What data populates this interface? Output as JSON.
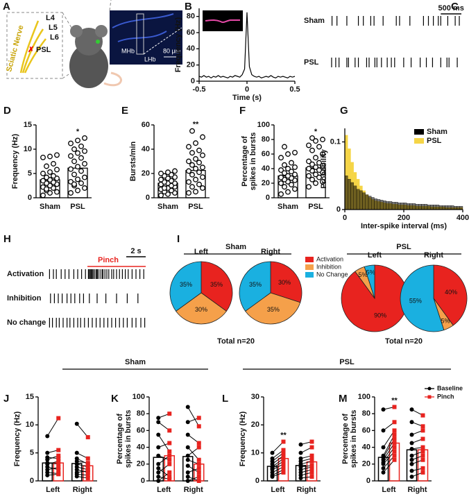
{
  "panel_a": {
    "letter": "A",
    "nerve": "Sciatic Nerve",
    "roots": [
      "L4",
      "L5",
      "L6"
    ],
    "injury": "PSL",
    "regions": [
      "MHb",
      "LHb"
    ],
    "scale": "80 μm"
  },
  "chart_data": [
    {
      "type": "line",
      "panel": "B",
      "ylabel": "Frequency (Hz)",
      "xlabel": "Time (s)",
      "xlim": [
        -0.5,
        0.5
      ],
      "xticks": [
        -0.5,
        0,
        0.5
      ],
      "ylim": [
        0,
        90
      ],
      "yticks": [
        0,
        20,
        40,
        60,
        80
      ],
      "color": "#000000",
      "x": [
        -0.5,
        -0.475,
        -0.45,
        -0.425,
        -0.4,
        -0.375,
        -0.35,
        -0.325,
        -0.3,
        -0.275,
        -0.25,
        -0.225,
        -0.2,
        -0.175,
        -0.15,
        -0.125,
        -0.1,
        -0.075,
        -0.05,
        -0.025,
        0,
        0.025,
        0.05,
        0.075,
        0.1,
        0.125,
        0.15,
        0.175,
        0.2,
        0.225,
        0.25,
        0.275,
        0.3,
        0.325,
        0.35,
        0.375,
        0.4,
        0.425,
        0.45,
        0.475,
        0.5
      ],
      "values": [
        6,
        5,
        7,
        5,
        6,
        4,
        6,
        5,
        7,
        5,
        6,
        5,
        4,
        6,
        5,
        7,
        6,
        5,
        8,
        15,
        85,
        18,
        8,
        6,
        5,
        6,
        4,
        5,
        6,
        5,
        7,
        5,
        4,
        6,
        5,
        6,
        5,
        4,
        6,
        5,
        6
      ]
    },
    {
      "type": "raster",
      "panel": "C",
      "xlim": [
        0,
        3200
      ],
      "scale_bar": {
        "value": 500,
        "label": "500 ms"
      },
      "series": [
        {
          "name": "Sham",
          "values": [
            60,
            180,
            420,
            700,
            820,
            1000,
            1080,
            1300,
            1620,
            1700,
            1950,
            2280,
            2400,
            2520,
            2640,
            2700,
            2870,
            3050,
            3150
          ]
        },
        {
          "name": "PSL",
          "values": [
            50,
            150,
            230,
            420,
            460,
            620,
            700,
            900,
            960,
            1100,
            1150,
            1260,
            1400,
            1500,
            1580,
            1800,
            1980,
            2200,
            2350,
            2500,
            2700,
            2850,
            2900,
            3100
          ]
        }
      ]
    },
    {
      "type": "bar_scatter",
      "panel": "D",
      "ylabel": "Frequency (Hz)",
      "categories": [
        "Sham",
        "PSL"
      ],
      "values": [
        3.7,
        6.1
      ],
      "stars": [
        null,
        "*"
      ],
      "ylim": [
        0,
        15
      ],
      "yticks": [
        0,
        5,
        10,
        15
      ],
      "points": [
        [
          0.5,
          1,
          1.2,
          1.5,
          2,
          2.2,
          2.5,
          2.8,
          3,
          3.2,
          3.5,
          3.7,
          4,
          4.2,
          4.5,
          5,
          5.3,
          5.8,
          6.5,
          7,
          8.3,
          8.5,
          8.8,
          1.8
        ],
        [
          1,
          1.5,
          2,
          2.5,
          3,
          3.3,
          3.8,
          4.2,
          4.8,
          5.5,
          5.9,
          6.4,
          7,
          7.5,
          8.2,
          8.6,
          9.2,
          9.6,
          10,
          10.6,
          11.2,
          11.8,
          12.3,
          2.8
        ]
      ]
    },
    {
      "type": "bar_scatter",
      "panel": "E",
      "ylabel": "Bursts/min",
      "categories": [
        "Sham",
        "PSL"
      ],
      "values": [
        12,
        22.5
      ],
      "stars": [
        null,
        "**"
      ],
      "ylim": [
        0,
        60
      ],
      "yticks": [
        0,
        20,
        40,
        60
      ],
      "points": [
        [
          2,
          3,
          4,
          5,
          6,
          7,
          8,
          9,
          10,
          10,
          11,
          12,
          12,
          13,
          14,
          15,
          16,
          17,
          18,
          19,
          20,
          21,
          22,
          8
        ],
        [
          4,
          5,
          8,
          9,
          11,
          13,
          15,
          17,
          19,
          21,
          22,
          24,
          25,
          27,
          29,
          30,
          32,
          35,
          37,
          39,
          42,
          45,
          50,
          55
        ]
      ]
    },
    {
      "type": "bar_scatter",
      "panel": "F",
      "ylabel": [
        "Percentage of",
        "spikes in bursts"
      ],
      "categories": [
        "Sham",
        "PSL"
      ],
      "values": [
        30,
        41
      ],
      "stars": [
        null,
        "*"
      ],
      "ylim": [
        0,
        100
      ],
      "yticks": [
        0,
        20,
        40,
        60,
        80,
        100
      ],
      "points": [
        [
          5,
          8,
          12,
          15,
          18,
          20,
          22,
          24,
          25,
          27,
          28,
          30,
          32,
          34,
          36,
          38,
          40,
          42,
          45,
          48,
          55,
          60,
          62,
          70
        ],
        [
          15,
          20,
          22,
          25,
          28,
          30,
          32,
          35,
          37,
          38,
          40,
          42,
          44,
          46,
          48,
          50,
          55,
          60,
          65,
          70,
          72,
          78,
          80,
          82
        ]
      ]
    },
    {
      "type": "histogram",
      "panel": "G",
      "ylabel": "Probability",
      "xlabel": "Inter-spike  interval (ms)",
      "xlim": [
        0,
        400
      ],
      "xticks": [
        0,
        200,
        400
      ],
      "ylim": [
        0,
        0.12
      ],
      "yticks": [
        0,
        0.1
      ],
      "legend": "top-right",
      "bins": [
        0,
        10,
        20,
        30,
        40,
        50,
        60,
        70,
        80,
        90,
        100,
        110,
        120,
        130,
        140,
        150,
        160,
        170,
        180,
        190,
        200,
        210,
        220,
        230,
        240,
        250,
        260,
        270,
        280,
        290,
        300,
        310,
        320,
        330,
        340,
        350,
        360,
        370,
        380,
        390,
        400
      ],
      "series": [
        {
          "name": "Sham",
          "color": "#000000",
          "values": [
            0.05,
            0.045,
            0.04,
            0.035,
            0.03,
            0.028,
            0.025,
            0.022,
            0.02,
            0.018,
            0.016,
            0.015,
            0.014,
            0.013,
            0.012,
            0.012,
            0.011,
            0.011,
            0.01,
            0.01,
            0.01,
            0.009,
            0.009,
            0.009,
            0.008,
            0.008,
            0.008,
            0.008,
            0.007,
            0.007,
            0.007,
            0.007,
            0.006,
            0.006,
            0.006,
            0.006,
            0.006,
            0.005,
            0.005,
            0.005
          ]
        },
        {
          "name": "PSL",
          "color": "#f5d547",
          "values": [
            0.11,
            0.09,
            0.07,
            0.055,
            0.045,
            0.035,
            0.028,
            0.022,
            0.018,
            0.015,
            0.013,
            0.012,
            0.011,
            0.01,
            0.009,
            0.009,
            0.008,
            0.008,
            0.007,
            0.007,
            0.007,
            0.006,
            0.006,
            0.006,
            0.005,
            0.005,
            0.005,
            0.005,
            0.005,
            0.004,
            0.004,
            0.004,
            0.004,
            0.004,
            0.003,
            0.003,
            0.003,
            0.003,
            0.003,
            0.003
          ]
        }
      ]
    },
    {
      "type": "raster",
      "panel": "H",
      "xlim": [
        0,
        10
      ],
      "scale_bar": {
        "value": 2,
        "label": "2 s"
      },
      "pinch": {
        "start": 4,
        "end": 10,
        "label": "Pinch",
        "color": "#e8231f"
      },
      "series": [
        {
          "name": "Activation",
          "values": [
            0.1,
            0.5,
            0.8,
            1.3,
            1.7,
            2.1,
            2.6,
            3.0,
            3.4,
            3.8,
            4.1,
            4.2,
            4.3,
            4.4,
            4.5,
            4.6,
            4.75,
            4.9,
            5.0,
            5.1,
            5.3,
            5.5,
            5.6,
            5.8,
            6.0,
            6.2,
            6.5,
            6.7,
            7.0,
            7.3,
            7.6,
            7.9,
            8.2,
            8.6,
            9.0,
            9.4,
            9.8
          ]
        },
        {
          "name": "Inhibition",
          "values": [
            0.2,
            0.6,
            1.0,
            1.4,
            1.9,
            2.3,
            2.7,
            3.2,
            3.6,
            4.2,
            5.0,
            5.9,
            7.0,
            8.1,
            9.2
          ]
        },
        {
          "name": "No change",
          "values": [
            0.1,
            0.4,
            0.8,
            1.1,
            1.5,
            1.9,
            2.2,
            2.6,
            3.0,
            3.3,
            3.7,
            4.1,
            4.5,
            4.9,
            5.3,
            5.7,
            6.1,
            6.5,
            6.9,
            7.3,
            7.7,
            8.1,
            8.6,
            9.0,
            9.5,
            9.9
          ]
        }
      ]
    },
    {
      "type": "pie",
      "panel": "I",
      "categories": [
        "Activation",
        "Inhibition",
        "No Change"
      ],
      "colors": [
        "#e8231f",
        "#f5a04a",
        "#1ab0e0"
      ],
      "groups": [
        {
          "name": "Sham",
          "total": "Total n=20",
          "pies": [
            {
              "name": "Left",
              "values": [
                35,
                30,
                35
              ],
              "value_labels": [
                "35%",
                "30%",
                "35%"
              ]
            },
            {
              "name": "Right",
              "values": [
                30,
                35,
                35
              ],
              "value_labels": [
                "30%",
                "35%",
                "35%"
              ]
            }
          ]
        },
        {
          "name": "PSL",
          "total": "Total n=20",
          "pies": [
            {
              "name": "Left",
              "values": [
                90,
                5,
                5
              ],
              "value_labels": [
                "90%",
                "5%",
                "5%"
              ]
            },
            {
              "name": "Right",
              "values": [
                40,
                5,
                55
              ],
              "value_labels": [
                "40%",
                "5%",
                "55%"
              ]
            }
          ]
        }
      ]
    },
    {
      "type": "paired_bar",
      "panel": "J",
      "group_title": "Sham",
      "ylabel": "Frequency (Hz)",
      "categories": [
        "Left",
        "Right"
      ],
      "ylim": [
        0,
        15
      ],
      "yticks": [
        0,
        5,
        10,
        15
      ],
      "series": [
        {
          "name": "Baseline",
          "color": "#000000",
          "values": [
            3.2,
            3.1
          ],
          "points": [
            [
              1,
              1.5,
              2,
              2.5,
              3,
              3.2,
              3.8,
              4.2,
              5,
              8
            ],
            [
              0.8,
              1.2,
              1.5,
              2,
              2.5,
              3,
              3.5,
              4,
              5,
              10.2
            ]
          ]
        },
        {
          "name": "Pinch",
          "color": "#e8231f",
          "values": [
            3.2,
            2.7
          ],
          "points": [
            [
              1.2,
              1.3,
              2.4,
              2,
              3.5,
              3,
              4.5,
              4,
              5.5,
              11.2
            ],
            [
              0.5,
              1,
              1.8,
              1.5,
              2,
              2.5,
              3.2,
              3,
              4,
              7.8
            ]
          ]
        }
      ]
    },
    {
      "type": "paired_bar",
      "panel": "K",
      "ylabel": [
        "Percentage of",
        "spikes in bursts"
      ],
      "categories": [
        "Left",
        "Right"
      ],
      "ylim": [
        0,
        100
      ],
      "yticks": [
        0,
        20,
        40,
        60,
        80,
        100
      ],
      "series": [
        {
          "name": "Baseline",
          "color": "#000000",
          "values": [
            28,
            29
          ],
          "points": [
            [
              0,
              5,
              10,
              15,
              20,
              30,
              40,
              55,
              70,
              75
            ],
            [
              0,
              5,
              10,
              18,
              25,
              30,
              40,
              55,
              70,
              88
            ]
          ]
        },
        {
          "name": "Pinch",
          "color": "#e8231f",
          "values": [
            30,
            20
          ],
          "points": [
            [
              10,
              2,
              20,
              5,
              30,
              25,
              45,
              35,
              60,
              80
            ],
            [
              5,
              0,
              15,
              10,
              20,
              40,
              25,
              45,
              75,
              65
            ]
          ]
        }
      ]
    },
    {
      "type": "paired_bar",
      "panel": "L",
      "group_title": "PSL",
      "ylabel": "Frequency (Hz)",
      "categories": [
        "Left",
        "Right"
      ],
      "ylim": [
        0,
        30
      ],
      "yticks": [
        0,
        10,
        20,
        30
      ],
      "series": [
        {
          "name": "Baseline",
          "color": "#000000",
          "values": [
            5.2,
            5.5
          ],
          "points": [
            [
              1.5,
              2,
              3,
              4,
              4.5,
              5,
              6,
              7,
              8,
              10
            ],
            [
              1,
              2,
              3,
              4,
              5,
              6,
              7,
              8,
              10,
              13
            ]
          ]
        },
        {
          "name": "Pinch",
          "color": "#e8231f",
          "values": [
            8,
            6.8
          ],
          "stars": [
            "**",
            null
          ],
          "points": [
            [
              3,
              4,
              5,
              6,
              7,
              8,
              9,
              10,
              11,
              14
            ],
            [
              1.5,
              3,
              4,
              5,
              5.5,
              7,
              8,
              9,
              12,
              14
            ]
          ]
        }
      ]
    },
    {
      "type": "paired_bar",
      "panel": "M",
      "ylabel": [
        "Percentage of",
        "spikes in bursts"
      ],
      "categories": [
        "Left",
        "Right"
      ],
      "ylim": [
        0,
        100
      ],
      "yticks": [
        0,
        20,
        40,
        60,
        80,
        100
      ],
      "legend": "top-right",
      "series": [
        {
          "name": "Baseline",
          "color": "#000000",
          "values": [
            28,
            37
          ],
          "points": [
            [
              10,
              15,
              20,
              22,
              25,
              28,
              30,
              40,
              60,
              85
            ],
            [
              5,
              12,
              20,
              25,
              30,
              38,
              45,
              55,
              70,
              85
            ]
          ]
        },
        {
          "name": "Pinch",
          "color": "#e8231f",
          "values": [
            45,
            37
          ],
          "stars": [
            "**",
            null
          ],
          "points": [
            [
              25,
              30,
              35,
              40,
              45,
              50,
              55,
              60,
              70,
              88
            ],
            [
              10,
              15,
              25,
              30,
              35,
              40,
              50,
              60,
              65,
              78
            ]
          ]
        }
      ]
    }
  ]
}
